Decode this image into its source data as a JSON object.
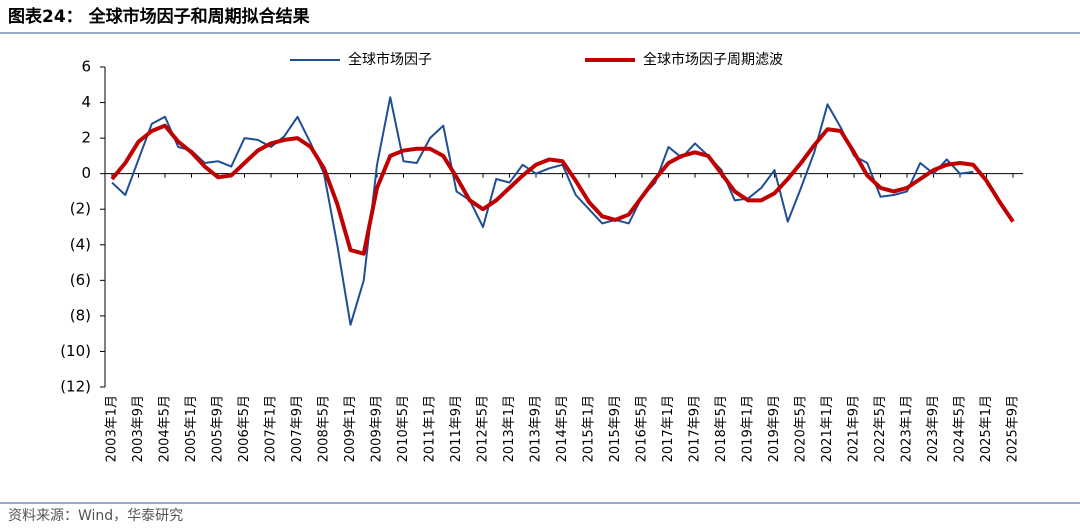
{
  "header": {
    "title": "图表24：  全球市场因子和周期拟合结果"
  },
  "chart_data": {
    "type": "line",
    "categories": [
      "2003年1月",
      null,
      "2003年9月",
      null,
      "2004年5月",
      null,
      "2005年1月",
      null,
      "2005年9月",
      null,
      "2006年5月",
      null,
      "2007年1月",
      null,
      "2007年9月",
      null,
      "2008年5月",
      null,
      "2009年1月",
      null,
      "2009年9月",
      null,
      "2010年5月",
      null,
      "2011年1月",
      null,
      "2011年9月",
      null,
      "2012年5月",
      null,
      "2013年1月",
      null,
      "2013年9月",
      null,
      "2014年5月",
      null,
      "2015年1月",
      null,
      "2015年9月",
      null,
      "2016年5月",
      null,
      "2017年1月",
      null,
      "2017年9月",
      null,
      "2018年5月",
      null,
      "2019年1月",
      null,
      "2019年9月",
      null,
      "2020年5月",
      null,
      "2021年1月",
      null,
      "2021年9月",
      null,
      "2022年5月",
      null,
      "2023年1月",
      null,
      "2023年9月",
      null,
      "2024年5月",
      null,
      "2025年1月",
      null,
      "2025年9月"
    ],
    "series": [
      {
        "name": "全球市场因子",
        "color": "#1f4e96",
        "values": [
          -0.5,
          -1.2,
          0.8,
          2.8,
          3.2,
          1.5,
          1.3,
          0.6,
          0.7,
          0.4,
          2.0,
          1.9,
          1.5,
          2.1,
          3.2,
          1.7,
          0.0,
          -4.0,
          -8.5,
          -6.0,
          0.5,
          4.3,
          0.7,
          0.6,
          2.0,
          2.7,
          -1.0,
          -1.5,
          -3.0,
          -0.3,
          -0.5,
          0.5,
          0.0,
          0.3,
          0.5,
          -1.2,
          -2.0,
          -2.8,
          -2.6,
          -2.8,
          -1.3,
          -0.5,
          1.5,
          0.9,
          1.7,
          1.0,
          0.2,
          -1.5,
          -1.4,
          -0.8,
          0.2,
          -2.7,
          -0.8,
          1.2,
          3.9,
          2.6,
          1.0,
          0.6,
          -1.3,
          -1.2,
          -1.0,
          0.6,
          0.0,
          0.8,
          0.0,
          0.1,
          null,
          null,
          null
        ]
      },
      {
        "name": "全球市场因子周期滤波",
        "color": "#c00000",
        "values": [
          -0.3,
          0.6,
          1.8,
          2.4,
          2.7,
          1.8,
          1.2,
          0.4,
          -0.2,
          -0.1,
          0.6,
          1.3,
          1.7,
          1.9,
          2.0,
          1.5,
          0.3,
          -1.7,
          -4.3,
          -4.5,
          -0.8,
          1.0,
          1.3,
          1.4,
          1.4,
          1.0,
          -0.2,
          -1.5,
          -2.0,
          -1.5,
          -0.8,
          -0.1,
          0.5,
          0.8,
          0.7,
          -0.4,
          -1.6,
          -2.4,
          -2.6,
          -2.3,
          -1.3,
          -0.3,
          0.6,
          1.0,
          1.2,
          1.0,
          0.0,
          -1.0,
          -1.5,
          -1.5,
          -1.1,
          -0.3,
          0.6,
          1.6,
          2.5,
          2.4,
          1.2,
          -0.1,
          -0.8,
          -1.0,
          -0.8,
          -0.3,
          0.2,
          0.5,
          0.6,
          0.5,
          -0.4,
          -1.6,
          -2.7
        ]
      }
    ],
    "ylim": [
      -12,
      6
    ],
    "yticks": [
      {
        "value": -12,
        "label": "(12)"
      },
      {
        "value": -10,
        "label": "(10)"
      },
      {
        "value": -8,
        "label": "(8)"
      },
      {
        "value": -6,
        "label": "(6)"
      },
      {
        "value": -4,
        "label": "(4)"
      },
      {
        "value": -2,
        "label": "(2)"
      },
      0,
      2,
      4,
      6
    ],
    "legend": "top"
  },
  "footer": {
    "source": "资料来源：Wind，华泰研究"
  }
}
